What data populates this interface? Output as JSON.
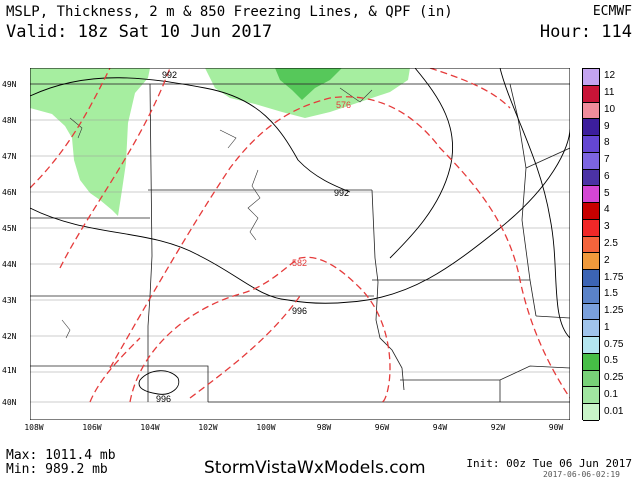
{
  "header": {
    "title": "MSLP, Thickness, 2 m & 850 Freezing Lines, & QPF (in)",
    "valid": "Valid: 18z Sat 10 Jun 2017",
    "model": "ECMWF",
    "hour": "Hour: 114"
  },
  "map": {
    "lat_labels": [
      "49N",
      "48N",
      "47N",
      "46N",
      "45N",
      "44N",
      "43N",
      "42N",
      "41N",
      "40N"
    ],
    "lon_labels": [
      "108W",
      "106W",
      "104W",
      "102W",
      "100W",
      "98W",
      "96W",
      "94W",
      "92W",
      "90W"
    ],
    "contour_labels": {
      "mslp_992_top": "992",
      "mslp_992_mid": "992",
      "mslp_996_mid": "996",
      "mslp_996_low": "996",
      "thick_576": "576",
      "thick_582": "582"
    },
    "qpf_color": "#a6eea0",
    "qpf_dark_color": "#56c85a",
    "thickness_color": "#e53b3b"
  },
  "legend": {
    "labels": [
      "12",
      "11",
      "10",
      "9",
      "8",
      "7",
      "6",
      "5",
      "4",
      "3",
      "2.5",
      "2",
      "1.75",
      "1.5",
      "1.25",
      "1",
      "0.75",
      "0.5",
      "0.25",
      "0.1",
      "0.01"
    ],
    "colors": [
      "#c4a4f0",
      "#c81437",
      "#f08c9c",
      "#3c1e9c",
      "#6446d2",
      "#7c64e0",
      "#4b32a5",
      "#d446d4",
      "#c80000",
      "#f02828",
      "#f4643c",
      "#f09a3c",
      "#3c64b4",
      "#5a82c8",
      "#7aa0dc",
      "#a0c4ec",
      "#b4e6f0",
      "#46be46",
      "#78d278",
      "#a0e6a0",
      "#c8f5c8"
    ]
  },
  "footer": {
    "max_pressure": "Max: 1011.4 mb",
    "min_pressure": "Min: 989.2 mb",
    "site": "StormVistaWxModels.com",
    "init": "Init: 00z Tue 06 Jun 2017",
    "timestamp": "2017-06-06-02:19"
  }
}
